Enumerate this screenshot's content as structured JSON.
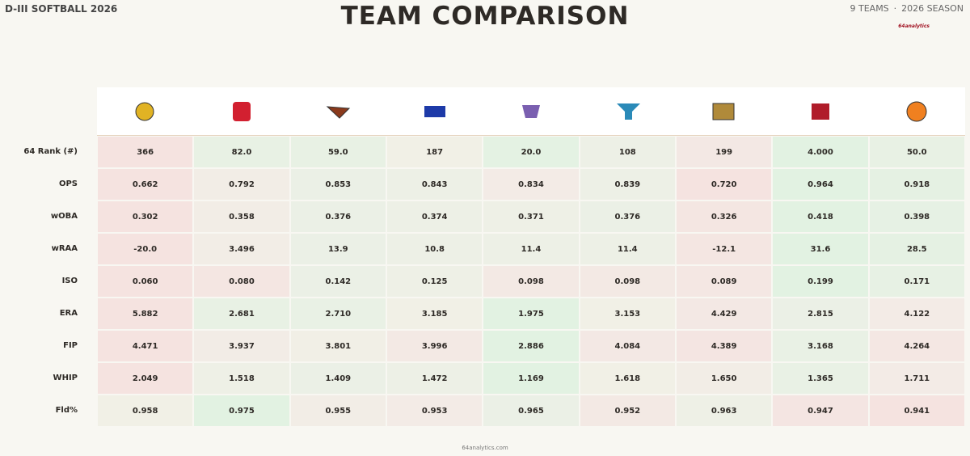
{
  "header": {
    "left": "D-III SOFTBALL 2026",
    "title": "TEAM COMPARISON",
    "teams": "9 TEAMS",
    "separator": "·",
    "season": "2026 SEASON",
    "brand": "64analytics"
  },
  "table": {
    "rows": [
      {
        "label": "64 Rank (#)",
        "cells": [
          "366",
          "82.0",
          "59.0",
          "187",
          "20.0",
          "108",
          "199",
          "4.000",
          "50.0"
        ],
        "colors": [
          "#f5e3e0",
          "#e8f1e4",
          "#e8f1e4",
          "#f1f0e6",
          "#e4f2e3",
          "#edf0e6",
          "#f3e8e4",
          "#e2f2e2",
          "#e8f1e4"
        ]
      },
      {
        "label": "OPS",
        "cells": [
          "0.662",
          "0.792",
          "0.853",
          "0.843",
          "0.834",
          "0.839",
          "0.720",
          "0.964",
          "0.918"
        ],
        "colors": [
          "#f5e3e0",
          "#f2ede6",
          "#ebf0e6",
          "#edf0e6",
          "#f3ebe6",
          "#edf0e6",
          "#f5e3e0",
          "#e2f2e2",
          "#e5f1e3"
        ]
      },
      {
        "label": "wOBA",
        "cells": [
          "0.302",
          "0.358",
          "0.376",
          "0.374",
          "0.371",
          "0.376",
          "0.326",
          "0.418",
          "0.398"
        ],
        "colors": [
          "#f5e3e0",
          "#f2ede6",
          "#ebf0e6",
          "#edf0e6",
          "#eef0e6",
          "#ebf0e6",
          "#f4e6e2",
          "#e2f2e2",
          "#e6f1e4"
        ]
      },
      {
        "label": "wRAA",
        "cells": [
          "-20.0",
          "3.496",
          "13.9",
          "10.8",
          "11.4",
          "11.4",
          "-12.1",
          "31.6",
          "28.5"
        ],
        "colors": [
          "#f5e3e0",
          "#f2ede6",
          "#ebf0e6",
          "#edf0e6",
          "#edf0e6",
          "#edf0e6",
          "#f4e6e2",
          "#e2f2e2",
          "#e5f1e3"
        ]
      },
      {
        "label": "ISO",
        "cells": [
          "0.060",
          "0.080",
          "0.142",
          "0.125",
          "0.098",
          "0.098",
          "0.089",
          "0.199",
          "0.171"
        ],
        "colors": [
          "#f5e3e0",
          "#f4e6e2",
          "#ebf0e6",
          "#eef0e6",
          "#f3e9e4",
          "#f3e9e4",
          "#f4e7e3",
          "#e2f2e2",
          "#e7f1e4"
        ]
      },
      {
        "label": "ERA",
        "cells": [
          "5.882",
          "2.681",
          "2.710",
          "3.185",
          "1.975",
          "3.153",
          "4.429",
          "2.815",
          "4.122"
        ],
        "colors": [
          "#f5e3e0",
          "#e8f1e4",
          "#e9f1e5",
          "#f1f0e6",
          "#e2f2e2",
          "#f1f0e6",
          "#f3e8e4",
          "#ebf0e6",
          "#f3ebe6"
        ]
      },
      {
        "label": "FIP",
        "cells": [
          "4.471",
          "3.937",
          "3.801",
          "3.996",
          "2.886",
          "4.084",
          "4.389",
          "3.168",
          "4.264"
        ],
        "colors": [
          "#f5e3e0",
          "#f2ece6",
          "#f1efe6",
          "#f3e9e4",
          "#e2f2e2",
          "#f3e8e4",
          "#f4e5e2",
          "#e9f1e5",
          "#f4e7e3"
        ]
      },
      {
        "label": "WHIP",
        "cells": [
          "2.049",
          "1.518",
          "1.409",
          "1.472",
          "1.169",
          "1.618",
          "1.650",
          "1.365",
          "1.711"
        ],
        "colors": [
          "#f5e3e0",
          "#eef0e6",
          "#ebf0e6",
          "#edf0e6",
          "#e2f2e2",
          "#f1f0e6",
          "#f2ede6",
          "#e9f1e5",
          "#f3ebe6"
        ]
      },
      {
        "label": "Fld%",
        "cells": [
          "0.958",
          "0.975",
          "0.955",
          "0.953",
          "0.965",
          "0.952",
          "0.963",
          "0.947",
          "0.941"
        ],
        "colors": [
          "#f1f0e6",
          "#e2f2e2",
          "#f2ede6",
          "#f3ebe6",
          "#ebf0e6",
          "#f3e9e4",
          "#eef0e6",
          "#f4e5e2",
          "#f5e3e0"
        ]
      }
    ]
  },
  "footer": "64analytics.com"
}
